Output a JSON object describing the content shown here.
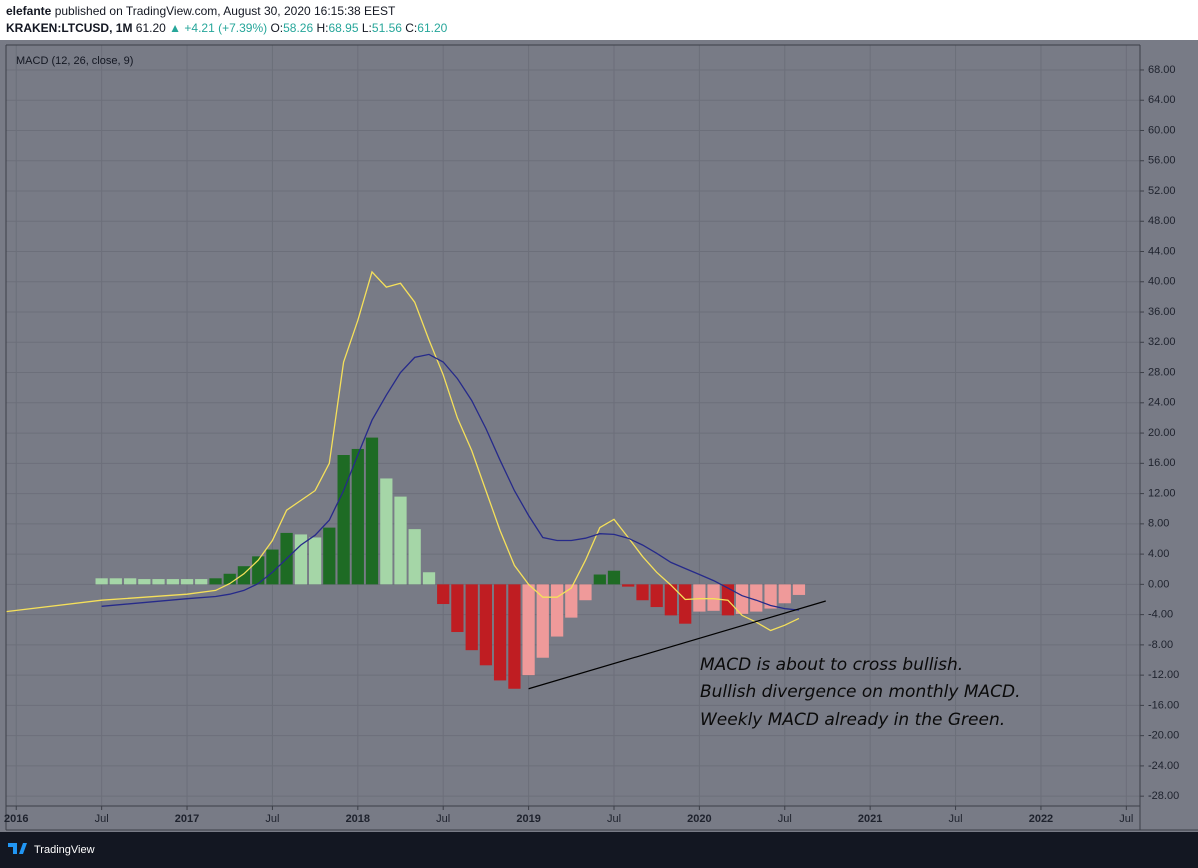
{
  "header": {
    "author": "elefante",
    "published": "published on TradingView.com, August 30, 2020 16:15:38 EEST",
    "symbol": "KRAKEN:LTCUSD, 1M",
    "last": "61.20",
    "change": "▲ +4.21 (+7.39%)",
    "ohlc": [
      {
        "label": "O:",
        "value": "58.26"
      },
      {
        "label": "H:",
        "value": "68.95"
      },
      {
        "label": "L:",
        "value": "51.56"
      },
      {
        "label": "C:",
        "value": "61.20"
      }
    ]
  },
  "footer": {
    "brand": "TradingView"
  },
  "chart_data": {
    "type": "combo",
    "indicator": "MACD (12, 26, close, 9)",
    "xlim": [
      2015.94,
      2022.58
    ],
    "ylim": [
      -29.3,
      71.3
    ],
    "grid": true,
    "background": "#787b86",
    "xticks": [
      2016,
      {
        "value": 2016.5,
        "label": "Jul"
      },
      2017,
      {
        "value": 2017.5,
        "label": "Jul"
      },
      2018,
      {
        "value": 2018.5,
        "label": "Jul"
      },
      2019,
      {
        "value": 2019.5,
        "label": "Jul"
      },
      2020,
      {
        "value": 2020.5,
        "label": "Jul"
      },
      2021,
      {
        "value": 2021.5,
        "label": "Jul"
      },
      2022,
      {
        "value": 2022.5,
        "label": "Jul"
      }
    ],
    "yticks": [
      {
        "value": 68,
        "label": "68.00"
      },
      {
        "value": 64,
        "label": "64.00"
      },
      {
        "value": 60,
        "label": "60.00"
      },
      {
        "value": 56,
        "label": "56.00"
      },
      {
        "value": 52,
        "label": "52.00"
      },
      {
        "value": 48,
        "label": "48.00"
      },
      {
        "value": 44,
        "label": "44.00"
      },
      {
        "value": 40,
        "label": "40.00"
      },
      {
        "value": 36,
        "label": "36.00"
      },
      {
        "value": 32,
        "label": "32.00"
      },
      {
        "value": 28,
        "label": "28.00"
      },
      {
        "value": 24,
        "label": "24.00"
      },
      {
        "value": 20,
        "label": "20.00"
      },
      {
        "value": 16,
        "label": "16.00"
      },
      {
        "value": 12,
        "label": "12.00"
      },
      {
        "value": 8,
        "label": "8.00"
      },
      {
        "value": 4,
        "label": "4.00"
      },
      {
        "value": 0,
        "label": "0.00"
      },
      {
        "value": -4,
        "label": "-4.00"
      },
      {
        "value": -8,
        "label": "-8.00"
      },
      {
        "value": -12,
        "label": "-12.00"
      },
      {
        "value": -16,
        "label": "-16.00"
      },
      {
        "value": -20,
        "label": "-20.00"
      },
      {
        "value": -24,
        "label": "-24.00"
      },
      {
        "value": -28,
        "label": "-28.00"
      }
    ],
    "series": [
      {
        "type": "bar",
        "x": [
          2016.5,
          2016.583,
          2016.667,
          2016.75,
          2016.833,
          2016.917,
          2017,
          2017.083,
          2017.167,
          2017.25,
          2017.333,
          2017.417,
          2017.5,
          2017.583,
          2017.667,
          2017.75,
          2017.833,
          2017.917,
          2018,
          2018.083,
          2018.167,
          2018.25,
          2018.333,
          2018.417,
          2018.5,
          2018.583,
          2018.667,
          2018.75,
          2018.833,
          2018.917,
          2019,
          2019.083,
          2019.167,
          2019.25,
          2019.333,
          2019.417,
          2019.5,
          2019.583,
          2019.667,
          2019.75,
          2019.833,
          2019.917,
          2020,
          2020.083,
          2020.167,
          2020.25,
          2020.333,
          2020.417,
          2020.5,
          2020.583
        ],
        "values": [
          0.8,
          0.8,
          0.8,
          0.7,
          0.7,
          0.7,
          0.7,
          0.7,
          0.8,
          1.4,
          2.4,
          3.7,
          4.6,
          6.8,
          6.6,
          6.2,
          7.5,
          17.1,
          17.9,
          19.4,
          14,
          11.6,
          7.3,
          1.6,
          -2.6,
          -6.3,
          -8.7,
          -10.7,
          -12.7,
          -13.8,
          -12,
          -9.7,
          -6.9,
          -4.4,
          -2.1,
          1.3,
          1.8,
          -0.3,
          -2.1,
          -3,
          -4.1,
          -5.2,
          -3.6,
          -3.5,
          -4.1,
          -3.9,
          -3.6,
          -3.2,
          -2.5,
          -1.4
        ],
        "colors": [
          "#a5d6a7",
          "#a5d6a7",
          "#a5d6a7",
          "#a5d6a7",
          "#a5d6a7",
          "#a5d6a7",
          "#a5d6a7",
          "#a5d6a7",
          "#1e6b24",
          "#1e6b24",
          "#1e6b24",
          "#1e6b24",
          "#1e6b24",
          "#1e6b24",
          "#a5d6a7",
          "#a5d6a7",
          "#1e6b24",
          "#1e6b24",
          "#1e6b24",
          "#1e6b24",
          "#a5d6a7",
          "#a5d6a7",
          "#a5d6a7",
          "#a5d6a7",
          "#bf1d22",
          "#bf1d22",
          "#bf1d22",
          "#bf1d22",
          "#bf1d22",
          "#bf1d22",
          "#ef9a9a",
          "#ef9a9a",
          "#ef9a9a",
          "#ef9a9a",
          "#ef9a9a",
          "#1e6b24",
          "#1e6b24",
          "#bf1d22",
          "#bf1d22",
          "#bf1d22",
          "#bf1d22",
          "#bf1d22",
          "#ef9a9a",
          "#ef9a9a",
          "#bf1d22",
          "#ef9a9a",
          "#ef9a9a",
          "#ef9a9a",
          "#ef9a9a",
          "#ef9a9a"
        ]
      },
      {
        "type": "line",
        "color": "#f5e05a",
        "x": [
          2015.94,
          2016.5,
          2017,
          2017.167,
          2017.25,
          2017.333,
          2017.417,
          2017.5,
          2017.583,
          2017.667,
          2017.75,
          2017.833,
          2017.917,
          2018,
          2018.083,
          2018.167,
          2018.25,
          2018.333,
          2018.417,
          2018.5,
          2018.583,
          2018.667,
          2018.75,
          2018.833,
          2018.917,
          2019,
          2019.083,
          2019.167,
          2019.25,
          2019.333,
          2019.417,
          2019.5,
          2019.583,
          2019.667,
          2019.75,
          2019.833,
          2019.917,
          2020,
          2020.083,
          2020.167,
          2020.25,
          2020.333,
          2020.417,
          2020.5,
          2020.583
        ],
        "values": [
          -3.6,
          -2.1,
          -1.3,
          -0.8,
          0.1,
          1.4,
          3.2,
          5.8,
          9.8,
          11.1,
          12.4,
          16,
          29.4,
          34.9,
          41.3,
          39.3,
          39.8,
          37.3,
          32.3,
          27.7,
          22,
          17.7,
          12.4,
          7.1,
          2.5,
          0,
          -1.7,
          -1.7,
          -0.5,
          3.2,
          7.5,
          8.6,
          6.2,
          3.7,
          1.6,
          -0.1,
          -2,
          -1.9,
          -1.9,
          -2.1,
          -4.1,
          -5,
          -6.1,
          -5.4,
          -4.5
        ]
      },
      {
        "type": "line",
        "color": "#262a8a",
        "x": [
          2016.5,
          2017,
          2017.167,
          2017.25,
          2017.333,
          2017.417,
          2017.5,
          2017.583,
          2017.667,
          2017.75,
          2017.833,
          2017.917,
          2018,
          2018.083,
          2018.167,
          2018.25,
          2018.333,
          2018.417,
          2018.5,
          2018.583,
          2018.667,
          2018.75,
          2018.833,
          2018.917,
          2019,
          2019.083,
          2019.167,
          2019.25,
          2019.333,
          2019.417,
          2019.5,
          2019.583,
          2019.667,
          2019.75,
          2019.833,
          2019.917,
          2020,
          2020.083,
          2020.167,
          2020.25,
          2020.333,
          2020.417,
          2020.5,
          2020.583
        ],
        "values": [
          -2.9,
          -1.9,
          -1.6,
          -1.3,
          -0.8,
          0.1,
          1.6,
          3.4,
          5.2,
          6.5,
          8.5,
          12.4,
          17.1,
          21.7,
          25,
          28,
          30,
          30.4,
          29.4,
          27.2,
          24.3,
          20.6,
          16.4,
          12.4,
          9.1,
          6.2,
          5.8,
          5.8,
          6.1,
          6.7,
          6.6,
          6.1,
          5.2,
          4.1,
          2.9,
          2.1,
          1.3,
          0.5,
          -0.5,
          -1.5,
          -2.1,
          -2.8,
          -3.2,
          -3.4
        ]
      }
    ],
    "trendline": {
      "color": "#000000",
      "x": [
        2019,
        2020.74
      ],
      "values": [
        -13.8,
        -2.2
      ]
    },
    "annotations": [
      "MACD is about to cross bullish.",
      "Bullish divergence on monthly MACD.",
      "Weekly MACD already in the Green."
    ]
  }
}
